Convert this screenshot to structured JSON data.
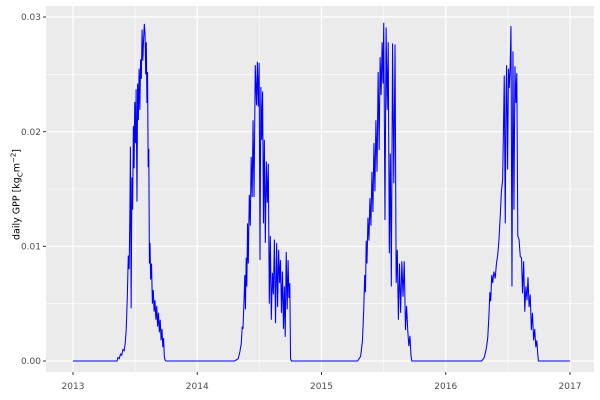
{
  "colors": {
    "figure_background": "#FFFFFF",
    "panel_background": "#EBEBEB",
    "grid_major": "#FFFFFF",
    "grid_minor": "#FFFFFF",
    "axis_text": "#4D4D4D",
    "axis_title": "#000000",
    "tick_mark": "#333333",
    "line": "#0000FF"
  },
  "chart_data": {
    "type": "line",
    "title": "",
    "xlabel": "",
    "ylabel": "daily GPP [kgC m−2]",
    "ylabel_parts": {
      "prefix": "daily GPP [kg",
      "sub": "C",
      "mid": "m",
      "sup": "−2",
      "suffix": "]"
    },
    "x_ticks": [
      2013,
      2014,
      2015,
      2016,
      2017
    ],
    "x_tick_labels": [
      "2013",
      "2014",
      "2015",
      "2016",
      "2017"
    ],
    "x_minor_ticks": [
      2013.5,
      2014.5,
      2015.5,
      2016.5
    ],
    "y_ticks": [
      0,
      0.01,
      0.02,
      0.03
    ],
    "y_tick_labels": [
      "0.00",
      "0.01",
      "0.02",
      "0.03"
    ],
    "y_minor_ticks": [
      0.005,
      0.015,
      0.025
    ],
    "xlim": [
      2012.7827,
      2017.1933
    ],
    "ylim": [
      -0.00096,
      0.03096
    ],
    "grid": true,
    "legend": false,
    "series": [
      {
        "name": "daily GPP",
        "color": "#0000FF",
        "points": [
          [
            2013.0,
            0
          ],
          [
            2013.1,
            0
          ],
          [
            2013.2,
            0
          ],
          [
            2013.3,
            0
          ],
          [
            2013.355,
            0
          ],
          [
            2013.362,
            0.0003
          ],
          [
            2013.372,
            0.0002
          ],
          [
            2013.382,
            0.0006
          ],
          [
            2013.392,
            0.0005
          ],
          [
            2013.402,
            0.001
          ],
          [
            2013.412,
            0.0009
          ],
          [
            2013.42,
            0.0015
          ],
          [
            2013.428,
            0.0027
          ],
          [
            2013.437,
            0.0055
          ],
          [
            2013.445,
            0.0092
          ],
          [
            2013.452,
            0.008
          ],
          [
            2013.458,
            0.013
          ],
          [
            2013.462,
            0.0187
          ],
          [
            2013.468,
            0.0046
          ],
          [
            2013.474,
            0.016
          ],
          [
            2013.48,
            0.0132
          ],
          [
            2013.486,
            0.0205
          ],
          [
            2013.492,
            0.0168
          ],
          [
            2013.497,
            0.0226
          ],
          [
            2013.503,
            0.019
          ],
          [
            2013.508,
            0.0237
          ],
          [
            2013.515,
            0.0139
          ],
          [
            2013.52,
            0.0242
          ],
          [
            2013.526,
            0.021
          ],
          [
            2013.532,
            0.0255
          ],
          [
            2013.538,
            0.0219
          ],
          [
            2013.544,
            0.0263
          ],
          [
            2013.55,
            0.0246
          ],
          [
            2013.556,
            0.0289
          ],
          [
            2013.562,
            0.0262
          ],
          [
            2013.568,
            0.028
          ],
          [
            2013.574,
            0.0294
          ],
          [
            2013.58,
            0.0285
          ],
          [
            2013.585,
            0.025
          ],
          [
            2013.59,
            0.0278
          ],
          [
            2013.595,
            0.0225
          ],
          [
            2013.6,
            0.0252
          ],
          [
            2013.605,
            0.0169
          ],
          [
            2013.61,
            0.0185
          ],
          [
            2013.615,
            0.0085
          ],
          [
            2013.62,
            0.0103
          ],
          [
            2013.625,
            0.0071
          ],
          [
            2013.632,
            0.0085
          ],
          [
            2013.639,
            0.005
          ],
          [
            2013.646,
            0.0062
          ],
          [
            2013.653,
            0.0043
          ],
          [
            2013.66,
            0.0053
          ],
          [
            2013.667,
            0.0036
          ],
          [
            2013.674,
            0.0048
          ],
          [
            2013.681,
            0.003
          ],
          [
            2013.688,
            0.0042
          ],
          [
            2013.695,
            0.0025
          ],
          [
            2013.702,
            0.0036
          ],
          [
            2013.709,
            0.0018
          ],
          [
            2013.716,
            0.0028
          ],
          [
            2013.723,
            0.0012
          ],
          [
            2013.729,
            0.002
          ],
          [
            2013.735,
            0.0004
          ],
          [
            2013.741,
            0.0001
          ],
          [
            2013.748,
            0
          ],
          [
            2013.8,
            0
          ],
          [
            2013.9,
            0
          ],
          [
            2014.0,
            0
          ],
          [
            2014.1,
            0
          ],
          [
            2014.2,
            0
          ],
          [
            2014.3,
            0
          ],
          [
            2014.33,
            0.0002
          ],
          [
            2014.343,
            0.0008
          ],
          [
            2014.354,
            0.0015
          ],
          [
            2014.362,
            0.003
          ],
          [
            2014.368,
            0.0028
          ],
          [
            2014.375,
            0.0048
          ],
          [
            2014.383,
            0.0075
          ],
          [
            2014.388,
            0.0045
          ],
          [
            2014.394,
            0.009
          ],
          [
            2014.399,
            0.0065
          ],
          [
            2014.405,
            0.012
          ],
          [
            2014.411,
            0.0085
          ],
          [
            2014.419,
            0.0145
          ],
          [
            2014.427,
            0.0118
          ],
          [
            2014.434,
            0.0178
          ],
          [
            2014.442,
            0.0143
          ],
          [
            2014.449,
            0.021
          ],
          [
            2014.457,
            0.0143
          ],
          [
            2014.467,
            0.0258
          ],
          [
            2014.477,
            0.0223
          ],
          [
            2014.484,
            0.0261
          ],
          [
            2014.491,
            0.0222
          ],
          [
            2014.498,
            0.026
          ],
          [
            2014.505,
            0.0088
          ],
          [
            2014.512,
            0.0239
          ],
          [
            2014.519,
            0.0193
          ],
          [
            2014.526,
            0.0235
          ],
          [
            2014.533,
            0.012
          ],
          [
            2014.54,
            0.0193
          ],
          [
            2014.548,
            0.0103
          ],
          [
            2014.556,
            0.0174
          ],
          [
            2014.564,
            0.0138
          ],
          [
            2014.572,
            0.0172
          ],
          [
            2014.58,
            0.005
          ],
          [
            2014.588,
            0.0109
          ],
          [
            2014.596,
            0.0036
          ],
          [
            2014.605,
            0.0077
          ],
          [
            2014.613,
            0.0058
          ],
          [
            2014.621,
            0.0106
          ],
          [
            2014.63,
            0.0033
          ],
          [
            2014.639,
            0.0103
          ],
          [
            2014.647,
            0.0047
          ],
          [
            2014.655,
            0.0097
          ],
          [
            2014.663,
            0.0068
          ],
          [
            2014.67,
            0.0088
          ],
          [
            2014.678,
            0.0042
          ],
          [
            2014.686,
            0.0078
          ],
          [
            2014.694,
            0.0028
          ],
          [
            2014.701,
            0.0065
          ],
          [
            2014.708,
            0.0021
          ],
          [
            2014.716,
            0.0095
          ],
          [
            2014.724,
            0.0045
          ],
          [
            2014.731,
            0.0088
          ],
          [
            2014.738,
            0.0055
          ],
          [
            2014.745,
            0.0068
          ],
          [
            2014.751,
            0.0002
          ],
          [
            2014.758,
            0
          ],
          [
            2014.85,
            0
          ],
          [
            2014.95,
            0
          ],
          [
            2015.05,
            0
          ],
          [
            2015.15,
            0
          ],
          [
            2015.25,
            0
          ],
          [
            2015.29,
            0
          ],
          [
            2015.315,
            0.0004
          ],
          [
            2015.33,
            0.0018
          ],
          [
            2015.34,
            0.0045
          ],
          [
            2015.348,
            0.0075
          ],
          [
            2015.354,
            0.006
          ],
          [
            2015.36,
            0.0105
          ],
          [
            2015.366,
            0.0085
          ],
          [
            2015.374,
            0.0125
          ],
          [
            2015.382,
            0.0105
          ],
          [
            2015.39,
            0.0142
          ],
          [
            2015.398,
            0.0118
          ],
          [
            2015.406,
            0.0165
          ],
          [
            2015.414,
            0.013
          ],
          [
            2015.422,
            0.019
          ],
          [
            2015.43,
            0.0148
          ],
          [
            2015.438,
            0.021
          ],
          [
            2015.447,
            0.0165
          ],
          [
            2015.456,
            0.0252
          ],
          [
            2015.464,
            0.0184
          ],
          [
            2015.472,
            0.0265
          ],
          [
            2015.48,
            0.0232
          ],
          [
            2015.488,
            0.0278
          ],
          [
            2015.495,
            0.0242
          ],
          [
            2015.501,
            0.0295
          ],
          [
            2015.511,
            0.0123
          ],
          [
            2015.52,
            0.0291
          ],
          [
            2015.529,
            0.0219
          ],
          [
            2015.537,
            0.0278
          ],
          [
            2015.546,
            0.0094
          ],
          [
            2015.554,
            0.0181
          ],
          [
            2015.562,
            0.0065
          ],
          [
            2015.572,
            0.0277
          ],
          [
            2015.582,
            0.0155
          ],
          [
            2015.592,
            0.0276
          ],
          [
            2015.601,
            0.0068
          ],
          [
            2015.61,
            0.0097
          ],
          [
            2015.619,
            0.0036
          ],
          [
            2015.628,
            0.0085
          ],
          [
            2015.637,
            0.0042
          ],
          [
            2015.647,
            0.0087
          ],
          [
            2015.656,
            0.0056
          ],
          [
            2015.666,
            0.0087
          ],
          [
            2015.676,
            0.0027
          ],
          [
            2015.685,
            0.0048
          ],
          [
            2015.694,
            0.0027
          ],
          [
            2015.703,
            0.0013
          ],
          [
            2015.712,
            0.0022
          ],
          [
            2015.72,
            0.0005
          ],
          [
            2015.727,
            0
          ],
          [
            2015.8,
            0
          ],
          [
            2015.9,
            0
          ],
          [
            2016.0,
            0
          ],
          [
            2016.1,
            0
          ],
          [
            2016.2,
            0
          ],
          [
            2016.29,
            0
          ],
          [
            2016.31,
            0.0003
          ],
          [
            2016.325,
            0.001
          ],
          [
            2016.338,
            0.002
          ],
          [
            2016.348,
            0.004
          ],
          [
            2016.355,
            0.006
          ],
          [
            2016.362,
            0.0052
          ],
          [
            2016.37,
            0.0075
          ],
          [
            2016.378,
            0.0068
          ],
          [
            2016.388,
            0.0078
          ],
          [
            2016.398,
            0.0072
          ],
          [
            2016.408,
            0.0085
          ],
          [
            2016.418,
            0.0092
          ],
          [
            2016.428,
            0.0105
          ],
          [
            2016.438,
            0.0125
          ],
          [
            2016.448,
            0.0148
          ],
          [
            2016.458,
            0.0158
          ],
          [
            2016.466,
            0.0212
          ],
          [
            2016.471,
            0.0249
          ],
          [
            2016.479,
            0.012
          ],
          [
            2016.486,
            0.0238
          ],
          [
            2016.49,
            0.0258
          ],
          [
            2016.498,
            0.0167
          ],
          [
            2016.505,
            0.0255
          ],
          [
            2016.511,
            0.0238
          ],
          [
            2016.518,
            0.0255
          ],
          [
            2016.525,
            0.0292
          ],
          [
            2016.533,
            0.0065
          ],
          [
            2016.541,
            0.027
          ],
          [
            2016.549,
            0.0132
          ],
          [
            2016.557,
            0.0257
          ],
          [
            2016.565,
            0.0225
          ],
          [
            2016.572,
            0.0251
          ],
          [
            2016.58,
            0.0109
          ],
          [
            2016.59,
            0.0106
          ],
          [
            2016.6,
            0.0091
          ],
          [
            2016.61,
            0.009
          ],
          [
            2016.618,
            0.0059
          ],
          [
            2016.627,
            0.0087
          ],
          [
            2016.636,
            0.0043
          ],
          [
            2016.645,
            0.0065
          ],
          [
            2016.654,
            0.0053
          ],
          [
            2016.662,
            0.0073
          ],
          [
            2016.671,
            0.0047
          ],
          [
            2016.68,
            0.0058
          ],
          [
            2016.689,
            0.0027
          ],
          [
            2016.698,
            0.0042
          ],
          [
            2016.707,
            0.0018
          ],
          [
            2016.716,
            0.0028
          ],
          [
            2016.725,
            0.0012
          ],
          [
            2016.733,
            0.0018
          ],
          [
            2016.74,
            0.0007
          ],
          [
            2016.746,
            0
          ],
          [
            2016.8,
            0
          ],
          [
            2016.9,
            0
          ],
          [
            2017.0,
            0
          ]
        ]
      }
    ]
  }
}
